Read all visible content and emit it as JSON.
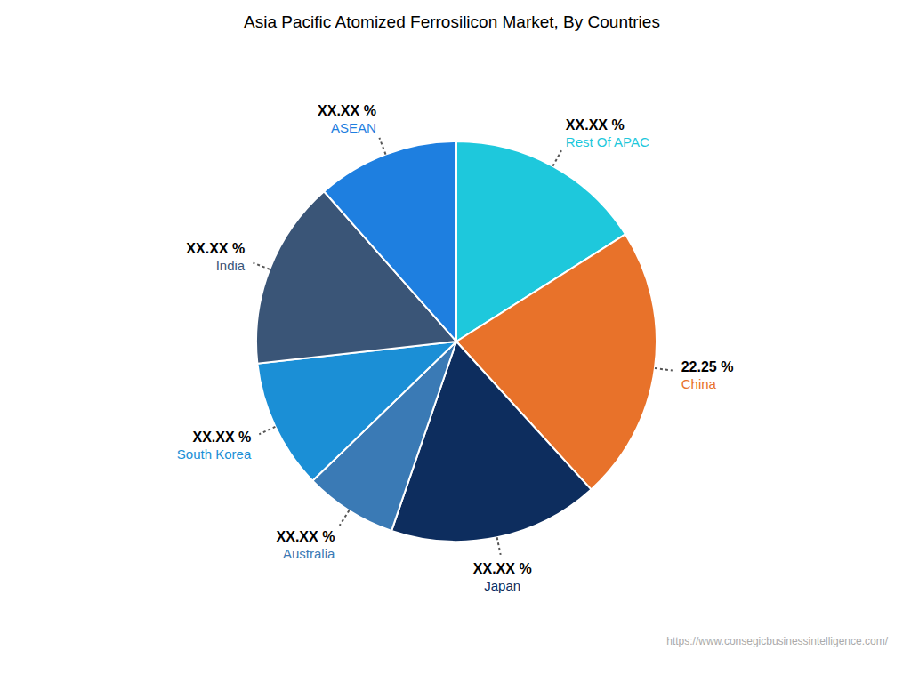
{
  "chart_data": {
    "type": "pie",
    "title": "Asia Pacific Atomized Ferrosilicon Market, By Countries",
    "categories": [
      "Rest Of APAC",
      "China",
      "Japan",
      "Australia",
      "South Korea",
      "India",
      "ASEAN"
    ],
    "values": [
      16.0,
      22.25,
      17.0,
      7.5,
      10.5,
      15.25,
      11.5
    ],
    "value_labels": [
      "XX.XX %",
      "22.25 %",
      "XX.XX %",
      "XX.XX %",
      "XX.XX %",
      "XX.XX %",
      "XX.XX %"
    ],
    "colors": [
      "#1EC8DC",
      "#E8722A",
      "#0D2D5E",
      "#3A7AB5",
      "#1B8FD6",
      "#3A5577",
      "#1E7FE0"
    ],
    "data_labels": true,
    "annotations": [
      "https://www.consegicbusinessintelligence.com/"
    ]
  }
}
